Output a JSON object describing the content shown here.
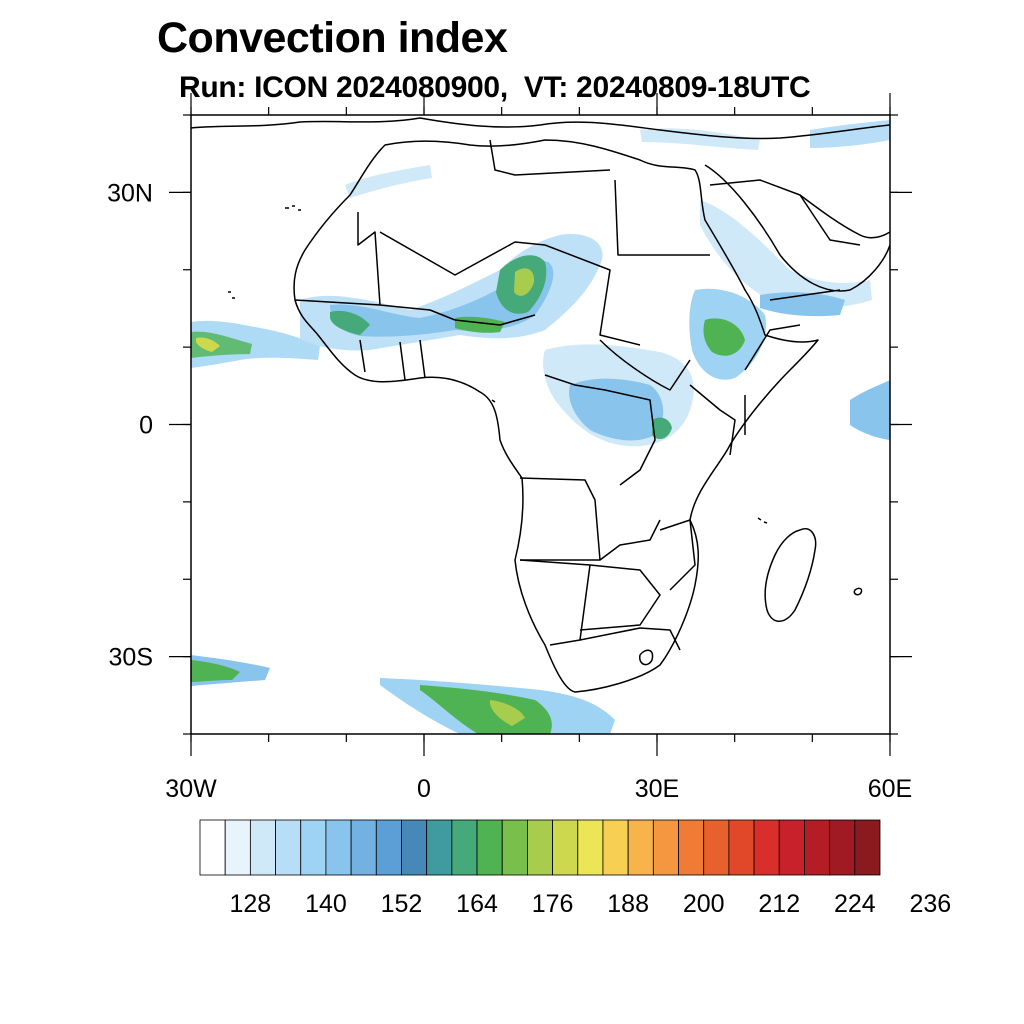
{
  "title": "Convection index",
  "subtitle": "Run: ICON 2024080900,  VT: 20240809-18UTC",
  "map": {
    "lon_range": [
      -30,
      60
    ],
    "lat_range": [
      -40,
      40
    ],
    "x_ticks": [
      {
        "lon": -30,
        "label": "30W"
      },
      {
        "lon": 0,
        "label": "0"
      },
      {
        "lon": 30,
        "label": "30E"
      },
      {
        "lon": 60,
        "label": "60E"
      }
    ],
    "y_ticks": [
      {
        "lat": 30,
        "label": "30N"
      },
      {
        "lat": 0,
        "label": "0"
      },
      {
        "lat": -30,
        "label": "30S"
      }
    ],
    "minor_lon_step": 10,
    "minor_lat_step": 10
  },
  "colorbar": {
    "colors": [
      "#ffffff",
      "#e8f4fc",
      "#cfe9f8",
      "#b7def6",
      "#9fd3f3",
      "#88c4ec",
      "#72b1e2",
      "#5c9ed6",
      "#4888b8",
      "#3f9ba0",
      "#46a97a",
      "#4fb353",
      "#79bf4b",
      "#a8cd4e",
      "#cdd84f",
      "#ece656",
      "#f7cf52",
      "#f6b44a",
      "#f59740",
      "#ef7b35",
      "#e8612c",
      "#e14729",
      "#d92e29",
      "#c9212b",
      "#b41c26",
      "#9f1a22",
      "#8a1a1e"
    ],
    "labels": [
      "128",
      "140",
      "152",
      "164",
      "176",
      "188",
      "200",
      "212",
      "224",
      "236"
    ]
  }
}
